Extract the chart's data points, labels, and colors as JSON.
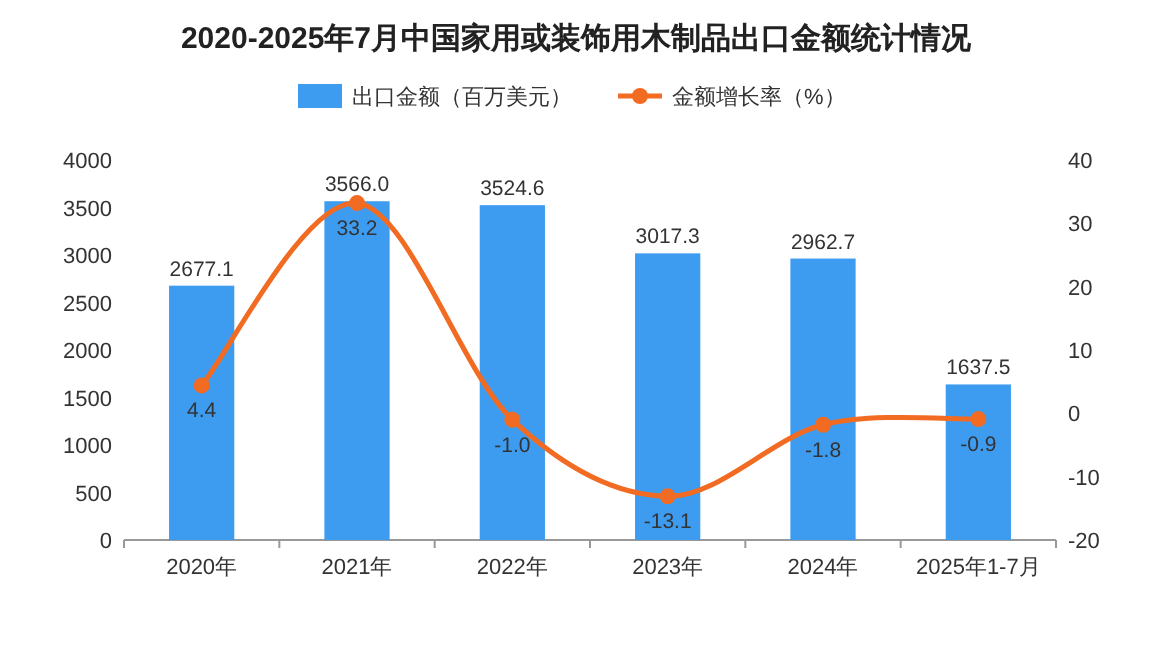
{
  "chart_data": {
    "type": "bar",
    "title": "2020-2025年7月中国家用或装饰用木制品出口金额统计情况",
    "categories": [
      "2020年",
      "2021年",
      "2022年",
      "2023年",
      "2024年",
      "2025年1-7月"
    ],
    "series": [
      {
        "name": "出口金额（百万美元）",
        "color": "#3d9cf0",
        "values": [
          2677.1,
          3566.0,
          3524.6,
          3017.3,
          2962.7,
          1637.5
        ],
        "value_labels": [
          "2677.1",
          "3566.0",
          "3524.6",
          "3017.3",
          "2962.7",
          "1637.5"
        ]
      },
      {
        "name": "金额增长率（%）",
        "type": "line",
        "axis": "y2",
        "color": "#f26b22",
        "marker": "circle",
        "line_style": "solid",
        "values": [
          4.4,
          33.2,
          -1.0,
          -13.1,
          -1.8,
          -0.9
        ],
        "value_labels": [
          "4.4",
          "33.2",
          "-1.0",
          "-13.1",
          "-1.8",
          "-0.9"
        ]
      }
    ],
    "ylim": [
      0,
      4000
    ],
    "yticks": [
      0,
      500,
      1000,
      1500,
      2000,
      2500,
      3000,
      3500,
      4000
    ],
    "y2lim": [
      -20,
      40
    ],
    "y2ticks": [
      -20,
      -10,
      0,
      10,
      20,
      30,
      40
    ],
    "legend": "top"
  }
}
